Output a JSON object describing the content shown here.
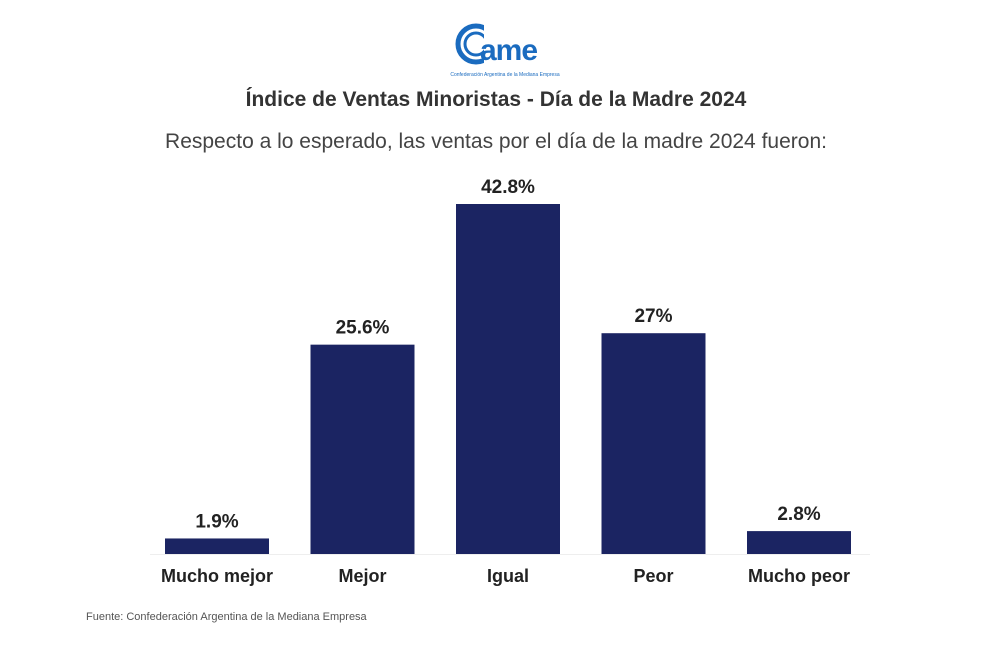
{
  "logo": {
    "text": "came",
    "tagline": "Confederación Argentina de la Mediana Empresa",
    "color": "#1a6bbf"
  },
  "chart_data": {
    "type": "bar",
    "title": "Índice de Ventas Minoristas - Día de la Madre 2024",
    "subtitle": "Respecto a lo esperado, las ventas por el día de la madre 2024 fueron:",
    "categories": [
      "Mucho mejor",
      "Mejor",
      "Igual",
      "Peor",
      "Mucho peor"
    ],
    "values": [
      1.9,
      25.6,
      42.8,
      27,
      2.8
    ],
    "value_labels": [
      "1.9%",
      "25.6%",
      "42.8%",
      "27%",
      "2.8%"
    ],
    "ylim": [
      0,
      42.8
    ],
    "grid": false,
    "bar_color": "#1b2462"
  },
  "source": "Fuente: Confederación Argentina de la Mediana Empresa"
}
